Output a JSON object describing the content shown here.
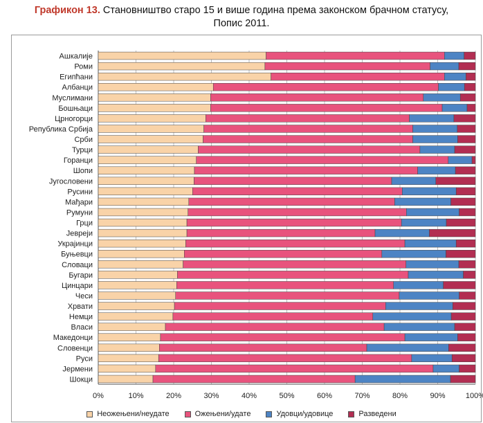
{
  "title": {
    "prefix": "Графикон 13.",
    "line1": "Становништво старо 15 и више година према законском брачном статусу,",
    "line2": "Попис 2011."
  },
  "chart_data": {
    "type": "bar",
    "orientation": "horizontal",
    "stacked": "percent",
    "xlim": [
      0,
      100
    ],
    "x_ticks": [
      "0%",
      "10%",
      "20%",
      "30%",
      "40%",
      "50%",
      "60%",
      "70%",
      "80%",
      "90%",
      "100%"
    ],
    "grid": true,
    "legend_position": "bottom",
    "categories": [
      "Ашкалије",
      "Роми",
      "Египћани",
      "Албанци",
      "Муслимани",
      "Бошњаци",
      "Црногорци",
      "Република Србија",
      "Срби",
      "Турци",
      "Горанци",
      "Шопи",
      "Југословени",
      "Русини",
      "Мађари",
      "Румуни",
      "Грци",
      "Јевреји",
      "Украјинци",
      "Буњевци",
      "Словаци",
      "Бугари",
      "Цинцари",
      "Чеси",
      "Хрвати",
      "Немци",
      "Власи",
      "Македонци",
      "Словенци",
      "Руси",
      "Јермени",
      "Шокци"
    ],
    "series": [
      {
        "name": "Неожењени/неудате",
        "color": "#f9d3a8",
        "values": [
          44.5,
          44.2,
          45.8,
          30.5,
          29.8,
          29.8,
          28.5,
          28.0,
          27.8,
          26.5,
          26.0,
          25.5,
          25.4,
          25.0,
          24.0,
          23.8,
          23.5,
          23.5,
          23.2,
          22.8,
          22.5,
          21.0,
          20.8,
          20.5,
          20.2,
          19.8,
          17.8,
          16.5,
          16.2,
          16.0,
          15.2,
          14.5
        ]
      },
      {
        "name": "Ожењени/удате",
        "color": "#e8537d",
        "values": [
          47.3,
          43.8,
          46.0,
          59.7,
          56.4,
          61.4,
          54.0,
          55.4,
          55.6,
          58.8,
          66.8,
          59.2,
          52.4,
          55.6,
          54.6,
          57.9,
          56.9,
          49.9,
          58.1,
          52.4,
          59.1,
          61.2,
          57.5,
          59.3,
          56.0,
          53.0,
          58.0,
          64.8,
          55.0,
          67.1,
          73.6,
          53.6
        ]
      },
      {
        "name": "Удовци/удовице",
        "color": "#4d84c4",
        "values": [
          5.2,
          7.6,
          5.7,
          6.9,
          9.8,
          6.6,
          11.8,
          11.8,
          11.9,
          9.2,
          6.3,
          10.0,
          11.7,
          14.3,
          14.9,
          14.0,
          11.9,
          14.4,
          13.6,
          17.0,
          14.0,
          14.6,
          13.2,
          15.9,
          17.8,
          20.8,
          18.7,
          14.0,
          21.7,
          10.7,
          6.9,
          25.3
        ]
      },
      {
        "name": "Разведени",
        "color": "#b22e52",
        "values": [
          3.0,
          4.4,
          2.5,
          2.9,
          4.0,
          2.2,
          5.7,
          4.8,
          4.7,
          5.5,
          0.9,
          5.3,
          10.5,
          5.1,
          6.5,
          4.3,
          7.7,
          12.2,
          5.1,
          7.8,
          4.4,
          3.2,
          8.5,
          4.3,
          6.0,
          6.4,
          5.5,
          4.7,
          7.1,
          6.2,
          4.3,
          6.6
        ]
      }
    ]
  }
}
